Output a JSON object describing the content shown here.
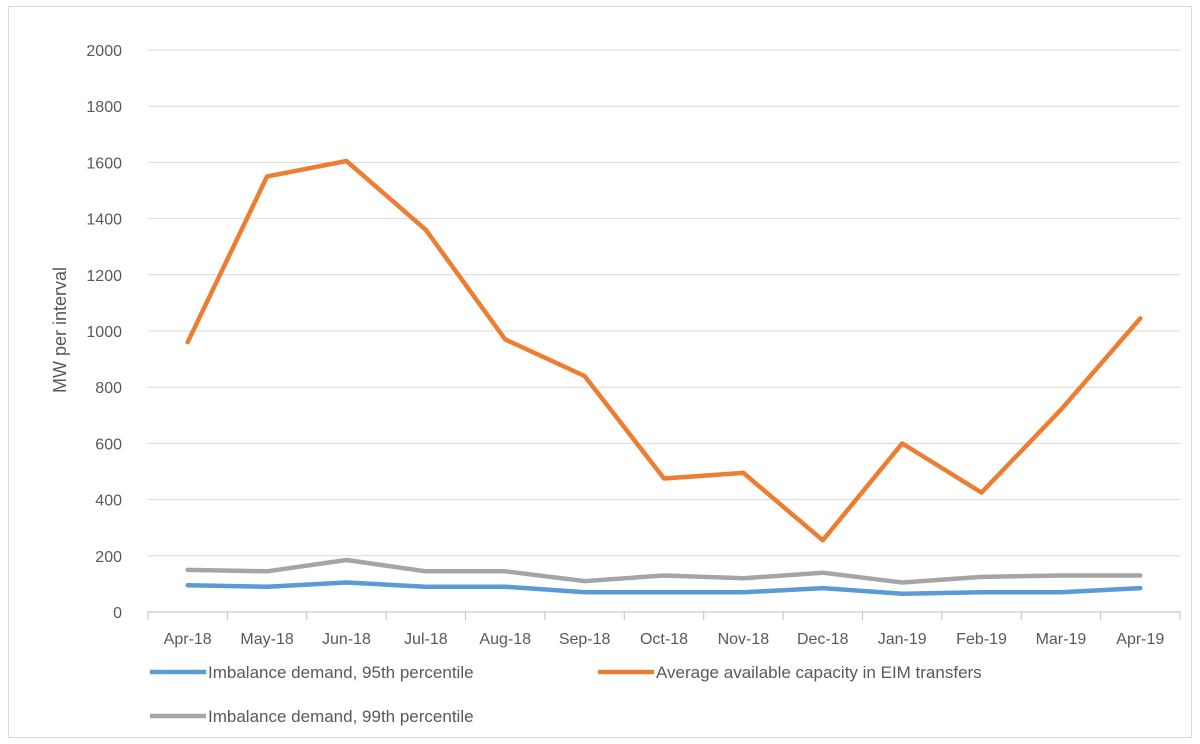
{
  "chart_data": {
    "type": "line",
    "title": "",
    "xlabel": "",
    "ylabel": "MW per interval",
    "ylim": [
      0,
      2000
    ],
    "yticks": [
      0,
      200,
      400,
      600,
      800,
      1000,
      1200,
      1400,
      1600,
      1800,
      2000
    ],
    "grid": true,
    "legend_position": "bottom",
    "categories": [
      "Apr-18",
      "May-18",
      "Jun-18",
      "Jul-18",
      "Aug-18",
      "Sep-18",
      "Oct-18",
      "Nov-18",
      "Dec-18",
      "Jan-19",
      "Feb-19",
      "Mar-19",
      "Apr-19"
    ],
    "series": [
      {
        "name": "Imbalance demand, 95th percentile",
        "color": "#5b9bd5",
        "values": [
          95,
          90,
          105,
          90,
          90,
          70,
          70,
          70,
          85,
          65,
          70,
          70,
          85
        ]
      },
      {
        "name": "Average available capacity in EIM transfers",
        "color": "#ed7d31",
        "values": [
          960,
          1550,
          1605,
          1360,
          970,
          840,
          475,
          495,
          255,
          600,
          425,
          720,
          1045
        ]
      },
      {
        "name": "Imbalance demand, 99th percentile",
        "color": "#a5a5a5",
        "values": [
          150,
          145,
          185,
          145,
          145,
          110,
          130,
          120,
          140,
          105,
          125,
          130,
          130
        ]
      }
    ]
  }
}
